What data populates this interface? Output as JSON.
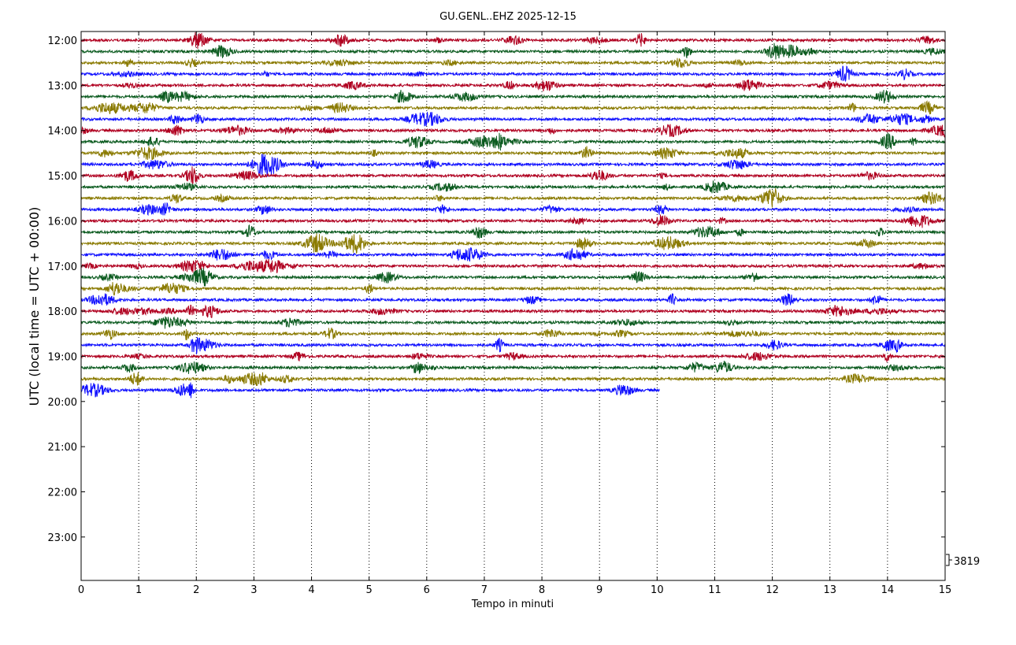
{
  "chart_data": {
    "type": "line",
    "title": "GU.GENL..EHZ 2025-12-15",
    "xlabel": "Tempo in minuti",
    "ylabel": "UTC (local time = UTC + 00:00)",
    "xlim": [
      0,
      15
    ],
    "x_ticks": [
      "0",
      "1",
      "2",
      "3",
      "4",
      "5",
      "6",
      "7",
      "8",
      "9",
      "10",
      "11",
      "12",
      "13",
      "14",
      "15"
    ],
    "y_ticks": [
      "12:00",
      "13:00",
      "14:00",
      "15:00",
      "16:00",
      "17:00",
      "18:00",
      "19:00",
      "20:00",
      "21:00",
      "22:00",
      "23:00"
    ],
    "grid": "vertical dotted at each minute",
    "scale_label": "3819",
    "trace_colors": [
      "#b00020",
      "#0a5a1e",
      "#8a7a00",
      "#1010ff"
    ],
    "traces": [
      {
        "start": "12:00",
        "end_minute": 15
      },
      {
        "start": "12:15",
        "end_minute": 15
      },
      {
        "start": "12:30",
        "end_minute": 15
      },
      {
        "start": "12:45",
        "end_minute": 15
      },
      {
        "start": "13:00",
        "end_minute": 15
      },
      {
        "start": "13:15",
        "end_minute": 15
      },
      {
        "start": "13:30",
        "end_minute": 15
      },
      {
        "start": "13:45",
        "end_minute": 15
      },
      {
        "start": "14:00",
        "end_minute": 15
      },
      {
        "start": "14:15",
        "end_minute": 15
      },
      {
        "start": "14:30",
        "end_minute": 15
      },
      {
        "start": "14:45",
        "end_minute": 15
      },
      {
        "start": "15:00",
        "end_minute": 15
      },
      {
        "start": "15:15",
        "end_minute": 15
      },
      {
        "start": "15:30",
        "end_minute": 15
      },
      {
        "start": "15:45",
        "end_minute": 15
      },
      {
        "start": "16:00",
        "end_minute": 15
      },
      {
        "start": "16:15",
        "end_minute": 15
      },
      {
        "start": "16:30",
        "end_minute": 15
      },
      {
        "start": "16:45",
        "end_minute": 15
      },
      {
        "start": "17:00",
        "end_minute": 15
      },
      {
        "start": "17:15",
        "end_minute": 15
      },
      {
        "start": "17:30",
        "end_minute": 15
      },
      {
        "start": "17:45",
        "end_minute": 15
      },
      {
        "start": "18:00",
        "end_minute": 15
      },
      {
        "start": "18:15",
        "end_minute": 15
      },
      {
        "start": "18:30",
        "end_minute": 15
      },
      {
        "start": "18:45",
        "end_minute": 15
      },
      {
        "start": "19:00",
        "end_minute": 15
      },
      {
        "start": "19:15",
        "end_minute": 15
      },
      {
        "start": "19:30",
        "end_minute": 15
      },
      {
        "start": "19:45",
        "end_minute": 10.05
      }
    ]
  }
}
